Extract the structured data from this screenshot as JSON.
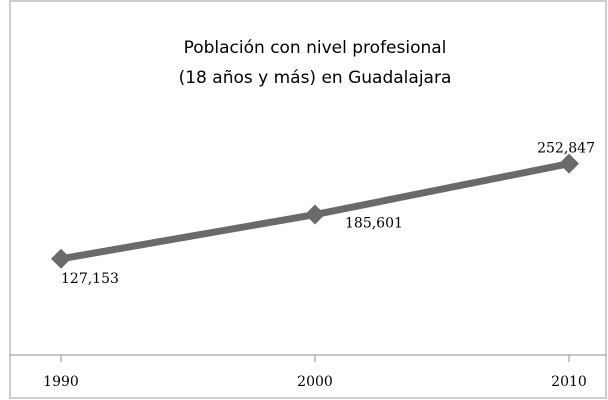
{
  "chart_data": {
    "type": "line",
    "title": [
      "Población con nivel profesional",
      "(18 años y más) en Guadalajara"
    ],
    "categories": [
      "1990",
      "2000",
      "2010"
    ],
    "series": [
      {
        "name": "Población",
        "color": "#6a6a6a",
        "values": [
          127153,
          185601,
          252847
        ],
        "value_labels": [
          "127,153",
          "185,601",
          "252,847"
        ]
      }
    ],
    "ylim": [
      0,
      300000
    ]
  }
}
